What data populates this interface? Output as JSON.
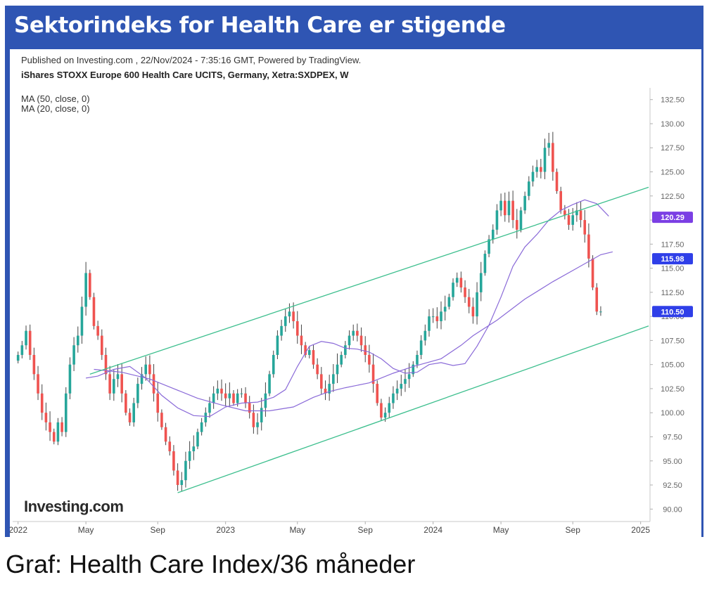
{
  "header": {
    "title": "Sektorindeks for Health Care er stigende"
  },
  "caption": "Graf: Health Care Index/36 måneder",
  "chart_meta": {
    "published": "Published on Investing.com , 22/Nov/2024 - 7:35:16 GMT, Powered by TradingView.",
    "instrument": "iShares STOXX Europe 600 Health Care UCITS, Germany, Xetra:SXDPEX, W",
    "indicator_labels": [
      "MA (50, close, 0)",
      "MA (20, close, 0)"
    ],
    "watermark": "Investing.com"
  },
  "colors": {
    "frame": "#2f55b3",
    "up_candle": "#26a69a",
    "down_candle": "#ef5350",
    "channel": "#3dbf8e",
    "ma50": "#8a6ad8",
    "ma20": "#8a6ad8",
    "badge_ma": "#7b3fe4",
    "badge_price": "#2f3fe8"
  },
  "chart_data": {
    "type": "candlestick",
    "title": "iShares STOXX Europe 600 Health Care UCITS, Germany, Xetra:SXDPEX, W",
    "x_ticks": [
      "2022",
      "May",
      "Sep",
      "2023",
      "May",
      "Sep",
      "2024",
      "May",
      "Sep",
      "2025"
    ],
    "x_tick_positions": [
      0,
      17,
      35,
      52,
      70,
      87,
      104,
      121,
      139,
      156
    ],
    "y_ticks": [
      "90.00",
      "92.50",
      "95.00",
      "97.50",
      "100.00",
      "102.50",
      "105.00",
      "107.50",
      "110.00",
      "112.50",
      "115.00",
      "117.50",
      "120.00",
      "122.50",
      "125.00",
      "127.50",
      "130.00",
      "132.50"
    ],
    "ylim": [
      89,
      133.5
    ],
    "xlim": [
      -1,
      158
    ],
    "grid": false,
    "price_badges": [
      {
        "label": "120.29",
        "value": 120.29,
        "style": "ma"
      },
      {
        "label": "115.98",
        "value": 115.98,
        "style": "price"
      },
      {
        "label": "110.50",
        "value": 110.5,
        "style": "price"
      }
    ],
    "series": [
      {
        "name": "weekly close",
        "close": [
          106.0,
          107.0,
          108.5,
          106.0,
          104.0,
          102.0,
          100.0,
          99.0,
          98.0,
          97.0,
          99.0,
          98.0,
          102.0,
          105.0,
          107.0,
          108.0,
          111.0,
          114.5,
          112.0,
          109.0,
          108.0,
          106.0,
          104.0,
          102.0,
          103.5,
          104.0,
          102.0,
          100.0,
          99.0,
          101.0,
          103.0,
          104.0,
          105.0,
          104.0,
          102.0,
          100.0,
          98.5,
          97.0,
          96.0,
          94.0,
          92.5,
          93.0,
          95.0,
          96.0,
          96.5,
          98.0,
          99.0,
          100.0,
          101.0,
          102.0,
          102.5,
          102.0,
          101.5,
          102.0,
          101.0,
          102.0,
          102.0,
          101.0,
          100.0,
          98.5,
          99.0,
          100.5,
          102.0,
          104.0,
          106.0,
          108.0,
          109.0,
          110.0,
          110.5,
          109.5,
          108.0,
          107.0,
          106.0,
          106.5,
          105.0,
          104.0,
          102.5,
          102.0,
          103.0,
          104.0,
          105.0,
          106.0,
          107.0,
          108.0,
          108.5,
          108.0,
          107.0,
          106.0,
          105.0,
          103.0,
          101.0,
          99.5,
          100.0,
          101.0,
          102.0,
          102.5,
          103.0,
          103.5,
          104.0,
          105.0,
          106.0,
          107.5,
          108.5,
          110.0,
          110.0,
          109.5,
          110.5,
          111.0,
          112.0,
          113.5,
          114.0,
          113.0,
          112.0,
          111.0,
          110.0,
          112.5,
          114.5,
          116.5,
          118.0,
          119.0,
          121.0,
          122.0,
          120.5,
          122.0,
          120.0,
          119.0,
          121.0,
          122.5,
          124.0,
          125.0,
          125.5,
          125.0,
          127.5,
          128.0,
          125.0,
          123.0,
          121.0,
          120.5,
          119.5,
          120.5,
          121.0,
          120.0,
          118.5,
          116.0,
          113.0,
          110.5,
          110.5
        ],
        "up_color": "#26a69a",
        "down_color": "#ef5350"
      },
      {
        "name": "MA (50, close, 0)",
        "x": [
          19,
          26,
          33,
          39,
          45,
          51,
          57,
          63,
          69,
          74,
          78,
          82,
          88,
          94,
          99,
          106,
          111,
          114,
          120,
          127,
          134,
          140,
          146,
          149
        ],
        "y": [
          104.5,
          104.2,
          103.5,
          102.5,
          101.5,
          100.8,
          100.2,
          100.2,
          100.6,
          101.6,
          102.2,
          102.6,
          103.1,
          104.1,
          104.8,
          105.6,
          107.0,
          108.0,
          109.6,
          111.8,
          113.6,
          115.0,
          116.4,
          116.7
        ],
        "color": "#8a6ad8"
      },
      {
        "name": "MA (20, close, 0)",
        "x": [
          17,
          20,
          24,
          28,
          32,
          36,
          40,
          44,
          48,
          52,
          56,
          60,
          64,
          67,
          70,
          73,
          76,
          79,
          82,
          85,
          88,
          91,
          94,
          97,
          100,
          103,
          106,
          109,
          112,
          115,
          118,
          121,
          124,
          127,
          130,
          133,
          136,
          139,
          142,
          145,
          148
        ],
        "y": [
          103.6,
          103.8,
          104.5,
          104.8,
          103.6,
          101.8,
          100.5,
          99.7,
          99.6,
          100.6,
          101.0,
          101.1,
          101.6,
          102.4,
          104.8,
          106.9,
          107.4,
          107.2,
          106.7,
          106.6,
          106.3,
          105.6,
          104.6,
          104.1,
          104.2,
          105.0,
          105.2,
          104.9,
          105.1,
          106.9,
          109.1,
          112.0,
          115.2,
          117.2,
          118.5,
          120.0,
          121.0,
          121.6,
          122.1,
          121.7,
          120.4
        ],
        "color": "#8a6ad8"
      },
      {
        "name": "upper channel",
        "x": [
          18,
          158
        ],
        "y": [
          104.0,
          123.4
        ],
        "color": "#3dbf8e"
      },
      {
        "name": "lower channel",
        "x": [
          40,
          158
        ],
        "y": [
          91.7,
          109.0
        ],
        "color": "#3dbf8e"
      }
    ]
  }
}
